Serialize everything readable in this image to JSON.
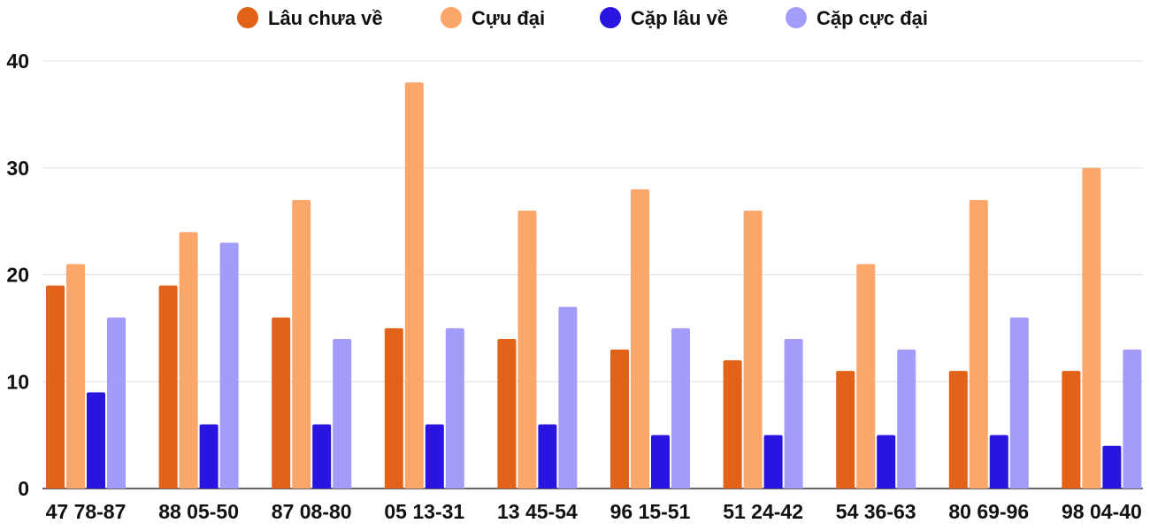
{
  "chart_data": {
    "type": "bar",
    "categories": [
      "47 78-87",
      "88 05-50",
      "87 08-80",
      "05 13-31",
      "13 45-54",
      "96 15-51",
      "51 24-42",
      "54 36-63",
      "80 69-96",
      "98 04-40"
    ],
    "series": [
      {
        "name": "Lâu chưa về",
        "color": "#E2621A",
        "values": [
          19,
          19,
          16,
          15,
          14,
          13,
          12,
          11,
          11,
          11
        ]
      },
      {
        "name": "Cựu đại",
        "color": "#FBA66B",
        "values": [
          21,
          24,
          27,
          38,
          26,
          28,
          26,
          21,
          27,
          30
        ]
      },
      {
        "name": "Cặp lâu về",
        "color": "#2A14E0",
        "values": [
          9,
          6,
          6,
          6,
          6,
          5,
          5,
          5,
          5,
          4
        ]
      },
      {
        "name": "Cặp cực đại",
        "color": "#A29CFB",
        "values": [
          16,
          23,
          14,
          15,
          17,
          15,
          14,
          13,
          16,
          13
        ]
      }
    ],
    "yticks": [
      0,
      10,
      20,
      30,
      40
    ],
    "ylim": [
      0,
      40
    ],
    "grid": true,
    "legend_position": "top-center"
  }
}
